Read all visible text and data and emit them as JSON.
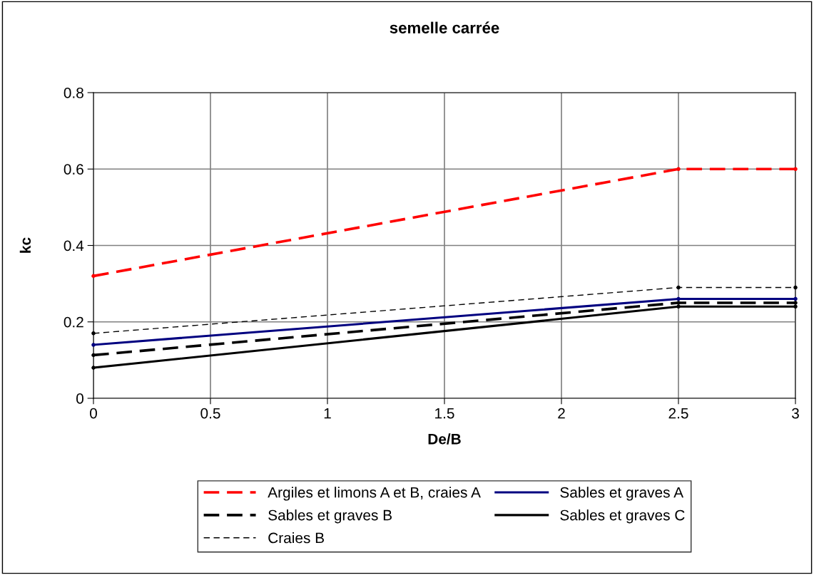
{
  "chart_data": {
    "type": "line",
    "title": "semelle carrée",
    "xlabel": "De/B",
    "ylabel": "kc",
    "x": [
      0,
      2.5,
      3
    ],
    "series": [
      {
        "name": "Argiles et limons A et B, craies A",
        "color": "#ff0000",
        "line_style": "dashed",
        "values": [
          0.32,
          0.6,
          0.6
        ]
      },
      {
        "name": "Sables et graves A",
        "color": "#000080",
        "line_style": "solid",
        "values": [
          0.14,
          0.26,
          0.26
        ]
      },
      {
        "name": "Sables et graves B",
        "color": "#000000",
        "line_style": "dashed",
        "values": [
          0.113,
          0.25,
          0.25
        ]
      },
      {
        "name": "Sables et graves C",
        "color": "#000000",
        "line_style": "solid",
        "values": [
          0.08,
          0.24,
          0.24
        ]
      },
      {
        "name": "Craies B",
        "color": "#000000",
        "line_style": "dotted",
        "values": [
          0.17,
          0.29,
          0.29
        ]
      }
    ],
    "xlim": [
      0,
      3
    ],
    "xticks": [
      0,
      0.5,
      1,
      1.5,
      2,
      2.5,
      3
    ],
    "ylim": [
      0,
      0.8
    ],
    "yticks": [
      0,
      0.2,
      0.4,
      0.6,
      0.8
    ],
    "grid": true,
    "legend": "bottom",
    "marker": "circle"
  }
}
